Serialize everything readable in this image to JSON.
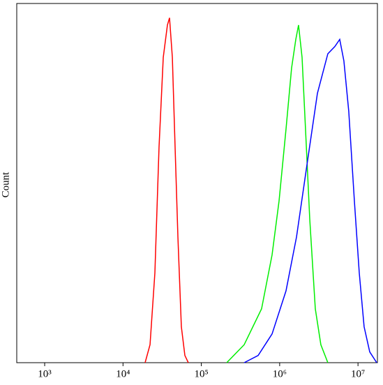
{
  "chart_data": {
    "type": "line",
    "y_label": "Count",
    "xscale": "log",
    "xlim": [
      440,
      17700000
    ],
    "ylim": [
      0,
      100
    ],
    "xticks": [
      {
        "value": 1000,
        "label": "10³"
      },
      {
        "value": 10000,
        "label": "10⁴"
      },
      {
        "value": 100000,
        "label": "10⁵"
      },
      {
        "value": 1000000,
        "label": "10⁶"
      },
      {
        "value": 10000000,
        "label": "10⁷"
      }
    ],
    "series": [
      {
        "color": "#ff0000",
        "x": [
          19150,
          22130,
          25530,
          28840,
          32660,
          36900,
          39260,
          42660,
          46240,
          50230,
          55590,
          61660,
          68230
        ],
        "values": [
          0,
          5,
          25,
          60,
          85,
          94,
          96,
          85,
          60,
          35,
          10,
          2,
          0
        ]
      },
      {
        "color": "#00ee00",
        "x": [
          210900,
          352400,
          587500,
          799800,
          982000,
          1205000,
          1419000,
          1607000,
          1742000,
          1932000,
          2138000,
          2421000,
          2851000,
          3357000,
          4121000
        ],
        "values": [
          0,
          5,
          15,
          30,
          45,
          65,
          82,
          90,
          94,
          85,
          65,
          40,
          15,
          5,
          0
        ]
      },
      {
        "color": "#0000ff",
        "x": [
          352400,
          530900,
          799800,
          1205000,
          1641000,
          2228000,
          3034000,
          4121000,
          5058000,
          5844000,
          6607000,
          7621000,
          8995000,
          10380000,
          11970000,
          14120000,
          17340000
        ],
        "values": [
          0,
          2,
          8,
          20,
          35,
          55,
          75,
          86,
          88,
          90,
          84,
          70,
          45,
          25,
          10,
          3,
          0
        ]
      }
    ]
  }
}
